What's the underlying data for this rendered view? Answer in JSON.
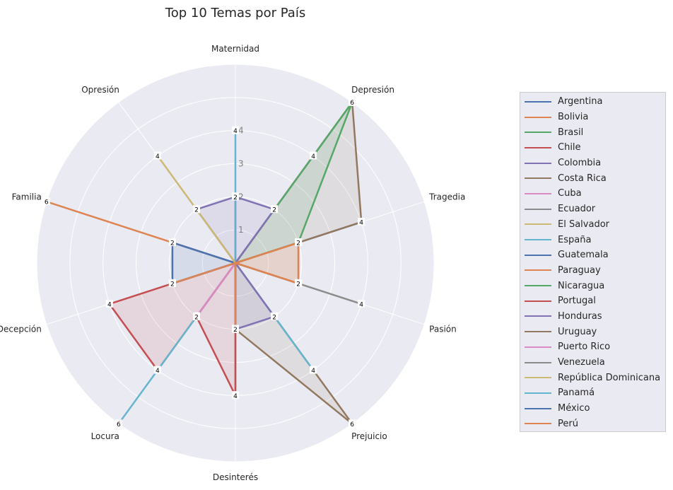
{
  "chart_data": {
    "type": "radar",
    "title": "Top 10 Temas por País",
    "categories": [
      "Maternidad",
      "Depresión",
      "Tragedia",
      "Pasión",
      "Prejuicio",
      "Desinterés",
      "Locura",
      "Decepción",
      "Familia",
      "Opresión"
    ],
    "rlim": [
      0,
      6
    ],
    "radial_ticks": [
      1,
      2,
      3,
      4
    ],
    "grid": true,
    "legend_position": "right",
    "series": [
      {
        "name": "Argentina",
        "color": "#4c72b0",
        "values": [
          0,
          0,
          4,
          0,
          0,
          0,
          0,
          0,
          0,
          0
        ]
      },
      {
        "name": "Bolivia",
        "color": "#dd8452",
        "values": [
          0,
          0,
          0,
          0,
          0,
          0,
          0,
          0,
          6,
          0
        ]
      },
      {
        "name": "Brasil",
        "color": "#55a868",
        "values": [
          0,
          6,
          0,
          0,
          0,
          0,
          0,
          0,
          0,
          0
        ]
      },
      {
        "name": "Chile",
        "color": "#c44e52",
        "values": [
          0,
          0,
          0,
          0,
          0,
          0,
          4,
          4,
          0,
          0
        ]
      },
      {
        "name": "Colombia",
        "color": "#8172b3",
        "values": [
          2,
          0,
          0,
          0,
          0,
          0,
          0,
          0,
          0,
          0
        ]
      },
      {
        "name": "Costa Rica",
        "color": "#937860",
        "values": [
          0,
          6,
          4,
          0,
          6,
          2,
          0,
          0,
          0,
          0
        ]
      },
      {
        "name": "Cuba",
        "color": "#da8bc3",
        "values": [
          0,
          4,
          0,
          0,
          0,
          0,
          2,
          0,
          0,
          0
        ]
      },
      {
        "name": "Ecuador",
        "color": "#8c8c8c",
        "values": [
          0,
          0,
          0,
          4,
          0,
          0,
          0,
          0,
          0,
          0
        ]
      },
      {
        "name": "El Salvador",
        "color": "#ccb974",
        "values": [
          0,
          0,
          0,
          0,
          0,
          0,
          0,
          0,
          0,
          4
        ]
      },
      {
        "name": "España",
        "color": "#64b5cd",
        "values": [
          4,
          0,
          0,
          0,
          4,
          0,
          6,
          0,
          0,
          0
        ]
      },
      {
        "name": "Guatemala",
        "color": "#4c72b0",
        "values": [
          0,
          0,
          0,
          0,
          0,
          0,
          0,
          2,
          2,
          0
        ]
      },
      {
        "name": "Paraguay",
        "color": "#dd8452",
        "values": [
          0,
          0,
          2,
          2,
          0,
          0,
          0,
          0,
          0,
          0
        ]
      },
      {
        "name": "Nicaragua",
        "color": "#55a868",
        "values": [
          0,
          6,
          2,
          0,
          0,
          4,
          0,
          0,
          0,
          0
        ]
      },
      {
        "name": "Portugal",
        "color": "#c44e52",
        "values": [
          0,
          0,
          0,
          0,
          0,
          4,
          2,
          0,
          0,
          0
        ]
      },
      {
        "name": "Honduras",
        "color": "#8172b3",
        "values": [
          2,
          2,
          0,
          0,
          2,
          2,
          0,
          0,
          0,
          2
        ]
      },
      {
        "name": "Uruguay",
        "color": "#937860",
        "values": [
          0,
          0,
          0,
          0,
          0,
          0,
          0,
          0,
          0,
          0
        ]
      },
      {
        "name": "Puerto Rico",
        "color": "#da8bc3",
        "values": [
          0,
          0,
          0,
          0,
          0,
          0,
          2,
          0,
          0,
          0
        ]
      },
      {
        "name": "Venezuela",
        "color": "#8c8c8c",
        "values": [
          0,
          0,
          0,
          2,
          0,
          0,
          0,
          0,
          0,
          0
        ]
      },
      {
        "name": "República Dominicana",
        "color": "#ccb974",
        "values": [
          0,
          0,
          0,
          0,
          0,
          0,
          0,
          0,
          0,
          2
        ]
      },
      {
        "name": "Panamá",
        "color": "#64b5cd",
        "values": [
          0,
          0,
          0,
          0,
          0,
          0,
          0,
          0,
          0,
          0
        ]
      },
      {
        "name": "México",
        "color": "#4c72b0",
        "values": [
          0,
          0,
          0,
          0,
          0,
          0,
          0,
          2,
          0,
          0
        ]
      },
      {
        "name": "Perú",
        "color": "#dd8452",
        "values": [
          0,
          0,
          2,
          2,
          0,
          2,
          0,
          2,
          0,
          0
        ]
      }
    ]
  }
}
